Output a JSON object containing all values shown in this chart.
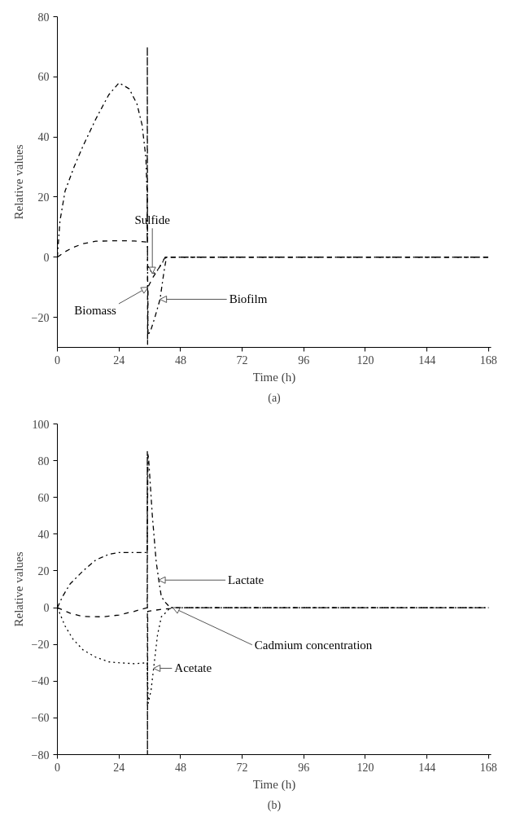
{
  "chart_data": [
    {
      "type": "line",
      "title": "(a)",
      "xlabel": "Time (h)",
      "ylabel": "Relative values",
      "xlim": [
        0,
        169
      ],
      "ylim": [
        -30,
        80
      ],
      "xticks": [
        0,
        24,
        48,
        72,
        96,
        120,
        144,
        168
      ],
      "yticks": [
        -20,
        0,
        20,
        40,
        60,
        80
      ],
      "grid": false,
      "legend": false,
      "series": [
        {
          "name": "Biofilm",
          "color": "#000000",
          "line_style": "dashdot",
          "x": [
            0,
            1,
            3,
            6.5,
            10,
            15,
            20,
            24,
            28,
            31,
            33,
            34.5,
            35,
            35.3,
            36.5,
            38,
            40,
            41.5,
            42.5,
            60,
            100,
            140,
            168
          ],
          "values": [
            0,
            12,
            22,
            30,
            37,
            46,
            54,
            58,
            56,
            51,
            44,
            33,
            20,
            -26,
            -24,
            -20,
            -14,
            -5,
            0,
            0,
            0,
            0,
            0
          ]
        },
        {
          "name": "Biomass",
          "color": "#000000",
          "line_style": "dashed",
          "x": [
            0,
            3,
            6,
            10,
            15,
            24,
            30,
            35,
            35.05,
            35.15,
            35.3,
            37,
            40,
            42,
            60,
            100,
            140,
            168
          ],
          "values": [
            0,
            1.8,
            3.2,
            4.5,
            5.3,
            5.5,
            5.4,
            5,
            70,
            -29,
            -10,
            -7,
            -3,
            0,
            0,
            0,
            0,
            0
          ]
        },
        {
          "name": "Sulfide",
          "color": "#000000",
          "line_style": "dotted",
          "x": [
            35.3,
            36,
            37,
            38.5,
            40,
            41.5,
            42.5
          ],
          "values": [
            -3,
            -4,
            -5.5,
            -5,
            -3,
            -1,
            0
          ]
        }
      ]
    },
    {
      "type": "line",
      "title": "(b)",
      "xlabel": "Time (h)",
      "ylabel": "Relative values",
      "xlim": [
        0,
        169
      ],
      "ylim": [
        -80,
        100
      ],
      "xticks": [
        0,
        24,
        48,
        72,
        96,
        120,
        144,
        168
      ],
      "yticks": [
        -80,
        -60,
        -40,
        -20,
        0,
        20,
        40,
        60,
        80,
        100
      ],
      "grid": false,
      "legend": false,
      "series": [
        {
          "name": "Lactate",
          "color": "#000000",
          "line_style": "dashdot",
          "x": [
            0,
            2,
            5,
            10,
            15,
            20,
            24,
            30,
            35,
            35.3,
            35.6,
            37,
            38.5,
            39.5,
            40.5,
            42,
            44,
            60,
            100,
            140,
            168
          ],
          "values": [
            0,
            6,
            13,
            20,
            26,
            29,
            30,
            30,
            30,
            84,
            80,
            50,
            25,
            15,
            6,
            3,
            0,
            0,
            0,
            0,
            0
          ]
        },
        {
          "name": "Cadmium concentration",
          "color": "#000000",
          "line_style": "dashed",
          "x": [
            0,
            5,
            10,
            18,
            24,
            30,
            35,
            35.05,
            35.1,
            35.2,
            40,
            44,
            45,
            60,
            100,
            140,
            168
          ],
          "values": [
            0,
            -3,
            -4.8,
            -5,
            -4,
            -2,
            0,
            85,
            -80,
            -2,
            -1,
            -0.5,
            0,
            0,
            0,
            0,
            0
          ]
        },
        {
          "name": "Acetate",
          "color": "#000000",
          "line_style": "dotted",
          "x": [
            0,
            3,
            6,
            10,
            15,
            20,
            24,
            30,
            35,
            35.4,
            36.5,
            37.5,
            39,
            40.5,
            42,
            44,
            60,
            100,
            140,
            168
          ],
          "values": [
            0,
            -10,
            -17,
            -23,
            -27,
            -29.5,
            -30,
            -30.5,
            -30,
            -52,
            -45,
            -33,
            -15,
            -5,
            -3,
            0,
            0,
            0,
            0,
            0
          ]
        }
      ]
    }
  ]
}
